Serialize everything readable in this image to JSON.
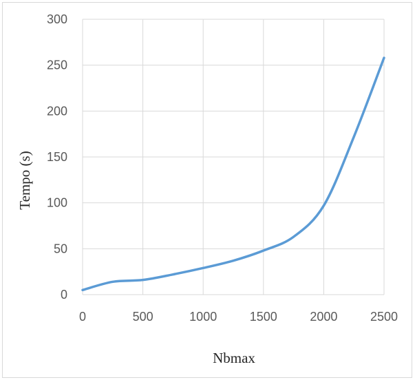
{
  "chart_data": {
    "type": "line",
    "title": "",
    "xlabel": "Nbmax",
    "ylabel": "Tempo (s)",
    "xlim": [
      0,
      2500
    ],
    "ylim": [
      0,
      300
    ],
    "x_ticks": [
      0,
      500,
      1000,
      1500,
      2000,
      2500
    ],
    "y_ticks": [
      0,
      50,
      100,
      150,
      200,
      250,
      300
    ],
    "grid": true,
    "legend": "none",
    "series": [
      {
        "color": "#5b9bd5",
        "x": [
          0,
          250,
          500,
          750,
          1000,
          1250,
          1500,
          1750,
          2000,
          2250,
          2500
        ],
        "y": [
          5,
          14,
          16,
          22,
          29,
          37,
          48,
          63,
          97,
          172,
          258
        ]
      }
    ]
  },
  "colors": {
    "series": "#5b9bd5",
    "grid": "#d9d9d9"
  }
}
